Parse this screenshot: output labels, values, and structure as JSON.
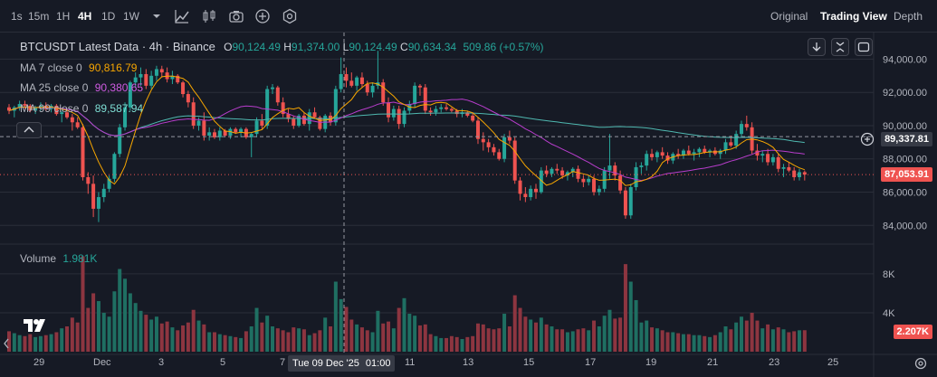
{
  "toolbar": {
    "timeframes": [
      "1s",
      "15m",
      "1H",
      "4H",
      "1D",
      "1W"
    ],
    "active_timeframe": "4H",
    "icons": [
      "chevron-down-icon",
      "indicators-icon",
      "candle-type-icon",
      "camera-icon",
      "add-icon",
      "settings-icon"
    ],
    "views": {
      "original": "Original",
      "trading_view": "Trading View",
      "depth": "Depth"
    },
    "active_view": "Trading View"
  },
  "legend": {
    "title": "BTCUSDT Latest Data · 4h · Binance",
    "o_label": "O",
    "o": "90,124.49",
    "h_label": "H",
    "h": "91,374.00",
    "l_label": "L",
    "l": "90,124.49",
    "c_label": "C",
    "c": "90,634.34",
    "change": "509.86 (+0.57%)",
    "ma7_label": "MA 7 close 0",
    "ma7_value": "90,816.79",
    "ma25_label": "MA 25 close 0",
    "ma25_value": "90,380.65",
    "ma99_label": "MA 99 close 0",
    "ma99_value": "89,587.94",
    "volume_label": "Volume",
    "volume_value": "1.981K"
  },
  "price_labels": {
    "crosshair": "89,337.81",
    "last": "87,053.91",
    "volume_last": "2.207K"
  },
  "crosshair_date": "Tue 09 Dec '25",
  "crosshair_time": "01:00",
  "colors": {
    "up": "#26a69a",
    "down": "#ef5350",
    "ma7": "#f7a600",
    "ma25": "#b83dcc",
    "ma99": "#4fb8b0",
    "background": "#161a25",
    "grid": "#2a2e39"
  },
  "chart_data": {
    "type": "candlestick",
    "symbol": "BTCUSDT",
    "interval": "4h",
    "price_axis": {
      "ticks": [
        "94,000.00",
        "92,000.00",
        "90,000.00",
        "88,000.00",
        "86,000.00",
        "84,000.00"
      ],
      "range": [
        83200,
        95600
      ]
    },
    "volume_axis": {
      "ticks": [
        "8K",
        "4K"
      ],
      "range": [
        0,
        10500
      ]
    },
    "x_ticks": [
      "29",
      "Dec",
      "3",
      "5",
      "7",
      "9",
      "11",
      "13",
      "15",
      "17",
      "19",
      "21",
      "23",
      "25"
    ],
    "x_start": "2025-11-29T00:00",
    "candles": [
      [
        91100,
        91300,
        90700,
        90900,
        2100
      ],
      [
        90900,
        91200,
        90500,
        91100,
        1900
      ],
      [
        91100,
        91500,
        90900,
        91300,
        1700
      ],
      [
        91300,
        91500,
        91000,
        91200,
        1600
      ],
      [
        91200,
        91300,
        90800,
        90900,
        1800
      ],
      [
        90900,
        91200,
        90700,
        91100,
        1500
      ],
      [
        91100,
        91400,
        90900,
        91200,
        1600
      ],
      [
        91200,
        91400,
        90900,
        91000,
        1700
      ],
      [
        91000,
        91300,
        90800,
        91200,
        1800
      ],
      [
        91200,
        91300,
        90600,
        90700,
        2000
      ],
      [
        90700,
        90900,
        90200,
        90800,
        2400
      ],
      [
        90800,
        91000,
        90400,
        90500,
        2600
      ],
      [
        90500,
        90700,
        89700,
        90200,
        3500
      ],
      [
        90200,
        90500,
        89800,
        89900,
        3000
      ],
      [
        89900,
        90100,
        86700,
        86900,
        9800
      ],
      [
        86900,
        87200,
        85900,
        86500,
        4500
      ],
      [
        86500,
        87000,
        84500,
        85000,
        6000
      ],
      [
        85000,
        86000,
        84200,
        85700,
        5200
      ],
      [
        85700,
        86500,
        85400,
        86200,
        4000
      ],
      [
        86200,
        87000,
        86000,
        86800,
        3600
      ],
      [
        86800,
        88400,
        86600,
        88300,
        6200
      ],
      [
        88300,
        90100,
        88100,
        89900,
        8500
      ],
      [
        89900,
        91400,
        89700,
        91100,
        7500
      ],
      [
        91100,
        92700,
        90900,
        92600,
        6000
      ],
      [
        92600,
        93200,
        92300,
        92900,
        5000
      ],
      [
        92900,
        93500,
        92400,
        93100,
        4200
      ],
      [
        93100,
        93400,
        92200,
        92400,
        3800
      ],
      [
        92400,
        93300,
        92200,
        93000,
        3300
      ],
      [
        93000,
        93600,
        92700,
        93400,
        3600
      ],
      [
        93400,
        93600,
        92900,
        93200,
        2900
      ],
      [
        93200,
        93500,
        92600,
        92800,
        3100
      ],
      [
        92800,
        93300,
        92500,
        93000,
        2500
      ],
      [
        93000,
        93100,
        92500,
        92600,
        2200
      ],
      [
        92600,
        92700,
        91700,
        91900,
        2700
      ],
      [
        91900,
        92100,
        91100,
        91400,
        3000
      ],
      [
        91400,
        91700,
        89800,
        90000,
        4300
      ],
      [
        90000,
        90500,
        89700,
        90300,
        3200
      ],
      [
        90300,
        90800,
        89100,
        89400,
        2800
      ],
      [
        89400,
        89900,
        89100,
        89600,
        2000
      ],
      [
        89600,
        89800,
        89200,
        89300,
        2000
      ],
      [
        89300,
        89900,
        89100,
        89700,
        1800
      ],
      [
        89700,
        89800,
        89300,
        89400,
        1700
      ],
      [
        89400,
        89900,
        89200,
        89800,
        1600
      ],
      [
        89800,
        89900,
        89500,
        89600,
        1500
      ],
      [
        89600,
        89900,
        89300,
        89800,
        1400
      ],
      [
        89800,
        89900,
        89200,
        89300,
        2100
      ],
      [
        89300,
        89600,
        88100,
        89500,
        2600
      ],
      [
        89500,
        90500,
        89300,
        90300,
        4500
      ],
      [
        90300,
        90700,
        89800,
        90000,
        3000
      ],
      [
        90000,
        92400,
        89800,
        92200,
        3700
      ],
      [
        92200,
        92500,
        91900,
        92300,
        2600
      ],
      [
        92300,
        92400,
        91200,
        91400,
        2400
      ],
      [
        91400,
        91700,
        90500,
        90700,
        2200
      ],
      [
        90700,
        91000,
        90200,
        90400,
        2000
      ],
      [
        90400,
        90600,
        89800,
        90000,
        2500
      ],
      [
        90000,
        90700,
        89900,
        90600,
        2400
      ],
      [
        90600,
        90800,
        90000,
        90100,
        2300
      ],
      [
        90100,
        91000,
        89700,
        90800,
        1700
      ],
      [
        90800,
        91100,
        90400,
        90500,
        1900
      ],
      [
        90500,
        90600,
        89700,
        89800,
        2200
      ],
      [
        89800,
        90700,
        89600,
        90600,
        3500
      ],
      [
        90600,
        90800,
        90000,
        90200,
        2600
      ],
      [
        90200,
        92400,
        90000,
        92200,
        7200
      ],
      [
        92200,
        94100,
        92000,
        93100,
        5400
      ],
      [
        93100,
        93500,
        92300,
        92700,
        4600
      ],
      [
        92700,
        93200,
        92300,
        92400,
        3300
      ],
      [
        92400,
        93000,
        92100,
        92900,
        2800
      ],
      [
        92900,
        93200,
        92300,
        92500,
        2500
      ],
      [
        92500,
        92700,
        91800,
        92000,
        2200
      ],
      [
        92000,
        92600,
        91700,
        92400,
        2000
      ],
      [
        92400,
        94500,
        92200,
        92600,
        4200
      ],
      [
        92600,
        92800,
        91200,
        91400,
        2900
      ],
      [
        91400,
        91700,
        90200,
        90500,
        3100
      ],
      [
        90500,
        91200,
        90300,
        91000,
        2400
      ],
      [
        91000,
        91200,
        89800,
        90100,
        4500
      ],
      [
        90100,
        91100,
        89900,
        90900,
        5500
      ],
      [
        90900,
        91500,
        90700,
        91300,
        3900
      ],
      [
        91300,
        92600,
        91100,
        92400,
        3700
      ],
      [
        92400,
        92500,
        91800,
        92300,
        2700
      ],
      [
        92300,
        92500,
        90700,
        90900,
        2800
      ],
      [
        90900,
        91100,
        90600,
        90800,
        1800
      ],
      [
        90800,
        91200,
        90600,
        91000,
        1600
      ],
      [
        91000,
        91300,
        90800,
        91100,
        1400
      ],
      [
        91100,
        91300,
        90900,
        91000,
        1400
      ],
      [
        91000,
        91100,
        90800,
        90900,
        1600
      ],
      [
        90900,
        91000,
        90500,
        90700,
        1500
      ],
      [
        90700,
        91000,
        90500,
        90800,
        1300
      ],
      [
        90800,
        90900,
        90500,
        90600,
        1500
      ],
      [
        90600,
        90800,
        90200,
        90300,
        1600
      ],
      [
        90300,
        90500,
        88900,
        89200,
        2900
      ],
      [
        89200,
        89600,
        88500,
        89000,
        2800
      ],
      [
        89000,
        89200,
        88400,
        88700,
        2400
      ],
      [
        88700,
        88900,
        88200,
        88400,
        2300
      ],
      [
        88400,
        88600,
        87900,
        88000,
        2400
      ],
      [
        88000,
        89500,
        87800,
        89300,
        3900
      ],
      [
        89300,
        89700,
        88900,
        89100,
        2600
      ],
      [
        89100,
        89300,
        86500,
        86700,
        5800
      ],
      [
        86700,
        86900,
        85500,
        85900,
        4500
      ],
      [
        85900,
        86300,
        85400,
        85700,
        3600
      ],
      [
        85700,
        86400,
        85500,
        86200,
        3300
      ],
      [
        86200,
        86500,
        85600,
        86000,
        3000
      ],
      [
        86000,
        87500,
        85900,
        87300,
        3500
      ],
      [
        87300,
        87600,
        86900,
        87100,
        2800
      ],
      [
        87100,
        87500,
        86900,
        87400,
        2600
      ],
      [
        87400,
        87700,
        87100,
        87300,
        2300
      ],
      [
        87300,
        87500,
        86800,
        87000,
        2300
      ],
      [
        87000,
        87300,
        86700,
        87200,
        2000
      ],
      [
        87200,
        87500,
        86900,
        87400,
        2100
      ],
      [
        87400,
        87600,
        86600,
        86800,
        2300
      ],
      [
        86800,
        87000,
        86300,
        86600,
        2400
      ],
      [
        86600,
        87000,
        86400,
        86800,
        2200
      ],
      [
        86800,
        87000,
        85800,
        86000,
        3200
      ],
      [
        86000,
        86400,
        85800,
        86200,
        2600
      ],
      [
        86200,
        87500,
        86000,
        87300,
        3700
      ],
      [
        87300,
        89500,
        86800,
        87600,
        4300
      ],
      [
        87600,
        87800,
        86700,
        87000,
        3400
      ],
      [
        87000,
        87300,
        85900,
        86100,
        3500
      ],
      [
        86100,
        86300,
        84400,
        84600,
        9000
      ],
      [
        84600,
        86500,
        84400,
        86300,
        7200
      ],
      [
        86300,
        87800,
        86100,
        87500,
        5300
      ],
      [
        87500,
        87800,
        87100,
        87600,
        3000
      ],
      [
        87600,
        88500,
        87300,
        88300,
        3200
      ],
      [
        88300,
        88600,
        87900,
        88100,
        2500
      ],
      [
        88100,
        88500,
        87800,
        88400,
        2400
      ],
      [
        88400,
        88700,
        88000,
        88200,
        2200
      ],
      [
        88200,
        88400,
        87700,
        87900,
        2000
      ],
      [
        87900,
        88400,
        87700,
        88300,
        2000
      ],
      [
        88300,
        88600,
        88000,
        88200,
        1900
      ],
      [
        88200,
        88600,
        88000,
        88500,
        1800
      ],
      [
        88500,
        88800,
        88200,
        88300,
        1800
      ],
      [
        88300,
        88600,
        87900,
        88400,
        1700
      ],
      [
        88400,
        88700,
        88100,
        88600,
        1700
      ],
      [
        88600,
        88800,
        88300,
        88400,
        1600
      ],
      [
        88400,
        88600,
        88100,
        88500,
        1500
      ],
      [
        88500,
        88700,
        88200,
        88300,
        1700
      ],
      [
        88300,
        88600,
        88000,
        88500,
        2000
      ],
      [
        88500,
        89200,
        88300,
        89000,
        2600
      ],
      [
        89000,
        89400,
        88700,
        88800,
        2300
      ],
      [
        88800,
        89700,
        88600,
        89500,
        3000
      ],
      [
        89500,
        90300,
        89300,
        90100,
        3600
      ],
      [
        90100,
        90600,
        89700,
        89900,
        3200
      ],
      [
        89900,
        90200,
        88300,
        88500,
        4000
      ],
      [
        88500,
        88900,
        87900,
        88200,
        3200
      ],
      [
        88200,
        88500,
        87800,
        88300,
        2400
      ],
      [
        88300,
        88600,
        87600,
        87800,
        2800
      ],
      [
        87800,
        88300,
        87600,
        88100,
        2300
      ],
      [
        88100,
        88300,
        87200,
        87400,
        2500
      ],
      [
        87400,
        87700,
        86900,
        87500,
        2300
      ],
      [
        87500,
        87800,
        87200,
        87300,
        2000
      ],
      [
        87300,
        87500,
        86700,
        86900,
        2100
      ],
      [
        86900,
        87400,
        86700,
        87200,
        2200
      ],
      [
        87200,
        87300,
        86700,
        87054,
        2207
      ]
    ],
    "ma7_last": 90816.79,
    "ma25_last": 90380.65,
    "ma99_last": 89587.94,
    "crosshair_price": 89337.81,
    "last_price": 87053.91
  }
}
